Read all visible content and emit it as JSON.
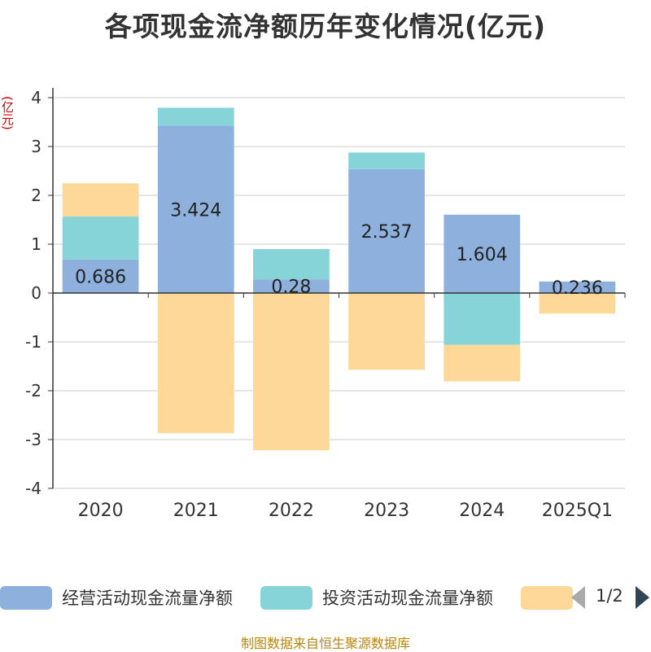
{
  "title": "各项现金流净额历年变化情况(亿元)",
  "source_note": "制图数据来自恒生聚源数据库",
  "legend": {
    "items": [
      {
        "label": "经营活动现金流量净额",
        "color": "#8eb0dc"
      },
      {
        "label": "投资活动现金流量净额",
        "color": "#86d4d8"
      },
      {
        "label": "",
        "color": "#fdd899"
      }
    ],
    "page_info": "1/2"
  },
  "chart_data": {
    "type": "bar",
    "stacked": true,
    "ylabel": "(亿元)",
    "ylim": [
      -4,
      4
    ],
    "yticks": [
      4,
      3,
      2,
      1,
      0,
      -1,
      -2,
      -3,
      -4
    ],
    "grid": true,
    "legend_position": "bottom",
    "categories": [
      "2020",
      "2021",
      "2022",
      "2023",
      "2024",
      "2025Q1"
    ],
    "series": [
      {
        "name": "经营活动现金流量净额",
        "color": "#8eb0dc",
        "values": [
          0.686,
          3.424,
          0.28,
          2.537,
          1.604,
          0.236
        ],
        "data_labels": [
          "0.686",
          "3.424",
          "0.28",
          "2.537",
          "1.604",
          "0.236"
        ]
      },
      {
        "name": "投资活动现金流量净额",
        "color": "#86d4d8",
        "values": [
          0.88,
          0.37,
          0.62,
          0.34,
          -1.06,
          0
        ]
      },
      {
        "name": "",
        "color": "#fdd899",
        "values": [
          0.68,
          -2.87,
          -3.22,
          -1.57,
          -0.75,
          -0.42
        ]
      }
    ]
  }
}
